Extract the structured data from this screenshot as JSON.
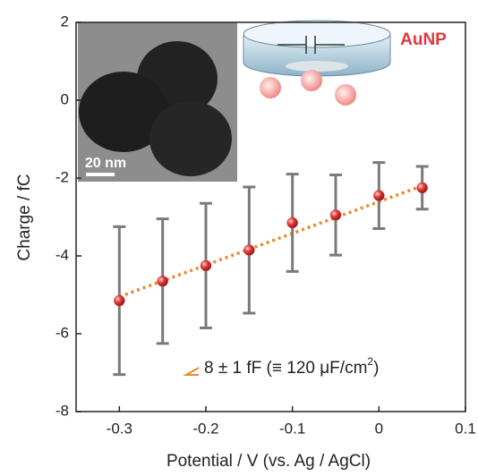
{
  "chart_data": {
    "type": "scatter",
    "x_label": "Potential / V (vs. Ag / AgCl)",
    "y_label": "Charge / fC",
    "xlim": [
      -0.35,
      0.1
    ],
    "xticks": [
      -0.3,
      -0.2,
      -0.1,
      0.0,
      0.1
    ],
    "ylim": [
      -8,
      2
    ],
    "yticks": [
      2,
      0,
      -2,
      -4,
      -6,
      -8
    ],
    "x": [
      -0.3,
      -0.25,
      -0.2,
      -0.15,
      -0.1,
      -0.05,
      0.0,
      0.05
    ],
    "values": [
      -5.15,
      -4.65,
      -4.25,
      -3.85,
      -3.15,
      -2.95,
      -2.45,
      -2.25
    ],
    "errors": [
      1.9,
      1.6,
      1.6,
      1.62,
      1.25,
      1.03,
      0.85,
      0.55
    ],
    "color": "#e23a3a",
    "error_color": "#7a7a7a",
    "fit": {
      "x": [
        -0.3,
        0.05
      ],
      "y": [
        -5.05,
        -2.2
      ],
      "color": "#e8892e"
    },
    "annotation": [
      "8 ± 1 fF (≡ 120 μF/cm",
      "2",
      ")"
    ],
    "inset_label": "AuNP",
    "scale_bar": "20 nm"
  }
}
